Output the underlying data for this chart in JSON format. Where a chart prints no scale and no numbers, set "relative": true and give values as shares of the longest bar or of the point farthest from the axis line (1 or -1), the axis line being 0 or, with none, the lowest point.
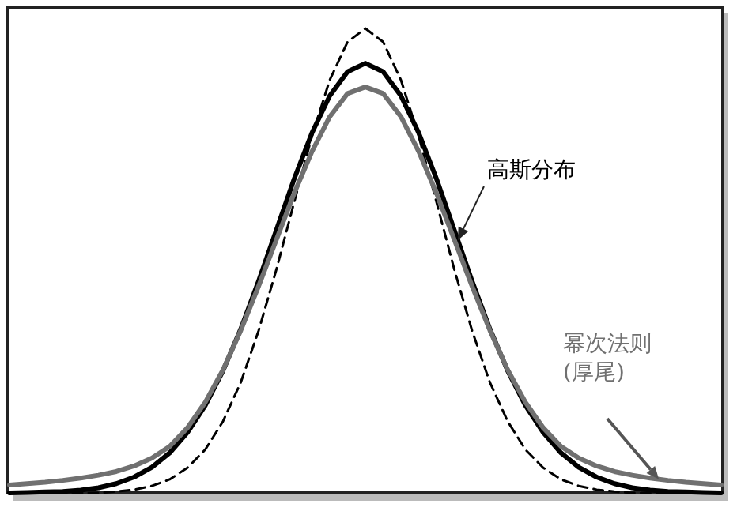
{
  "chart_data": {
    "type": "line",
    "relative": true,
    "legend": false,
    "grid": false,
    "marker": "none",
    "categories": [
      null,
      null,
      null,
      null,
      null,
      null,
      null,
      null,
      null,
      null,
      null,
      null,
      null,
      null,
      null,
      null,
      null,
      null,
      null,
      null,
      null,
      null,
      null,
      null,
      null,
      null,
      null,
      null,
      null,
      null,
      null,
      null,
      null,
      null,
      null,
      null,
      null,
      null,
      null,
      null,
      null
    ],
    "series": [
      {
        "color": "#000000",
        "line_style": "dashed",
        "values": [
          0,
          0,
          0,
          0,
          0,
          0,
          0.003,
          0.007,
          0.015,
          0.029,
          0.054,
          0.093,
          0.154,
          0.238,
          0.349,
          0.481,
          0.626,
          0.768,
          0.889,
          0.971,
          1,
          0.971,
          0.889,
          0.768,
          0.626,
          0.481,
          0.349,
          0.238,
          0.154,
          0.093,
          0.054,
          0.029,
          0.015,
          0.007,
          0.003,
          0,
          0,
          0,
          0,
          0,
          0
        ]
      },
      {
        "name": "高斯分布",
        "color": "#000000",
        "line_style": "solid",
        "values": [
          0,
          0.001,
          0.002,
          0.003,
          0.006,
          0.011,
          0.02,
          0.034,
          0.055,
          0.086,
          0.13,
          0.188,
          0.263,
          0.353,
          0.456,
          0.566,
          0.676,
          0.775,
          0.855,
          0.907,
          0.925,
          0.907,
          0.855,
          0.775,
          0.676,
          0.566,
          0.456,
          0.353,
          0.263,
          0.188,
          0.13,
          0.086,
          0.055,
          0.034,
          0.02,
          0.011,
          0.006,
          0.003,
          0.002,
          0.001,
          0
        ]
      },
      {
        "name": "幂次法则\n(厚尾)",
        "color": "#707070",
        "line_style": "solid",
        "values": [
          0.017,
          0.02,
          0.023,
          0.027,
          0.032,
          0.038,
          0.046,
          0.058,
          0.075,
          0.1,
          0.14,
          0.195,
          0.265,
          0.35,
          0.445,
          0.545,
          0.645,
          0.735,
          0.81,
          0.86,
          0.874,
          0.86,
          0.81,
          0.735,
          0.645,
          0.545,
          0.445,
          0.35,
          0.265,
          0.195,
          0.14,
          0.1,
          0.075,
          0.058,
          0.046,
          0.038,
          0.032,
          0.027,
          0.023,
          0.02,
          0.017
        ]
      }
    ]
  }
}
